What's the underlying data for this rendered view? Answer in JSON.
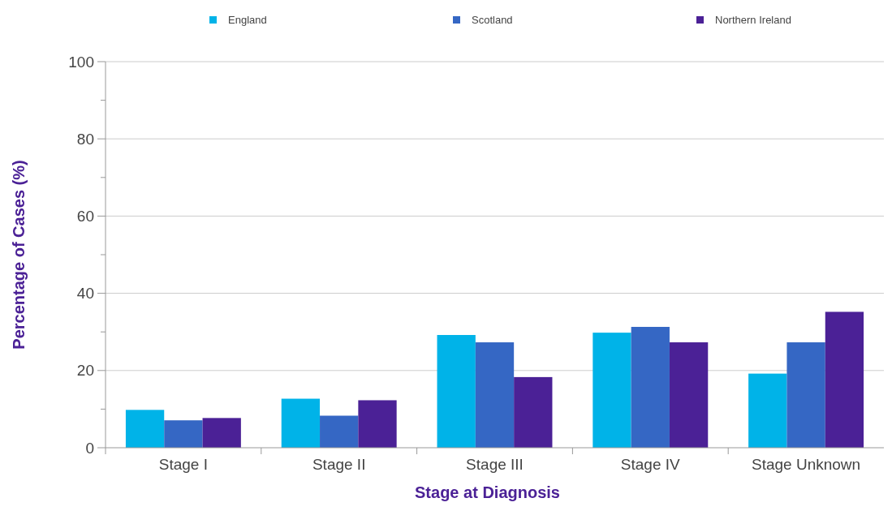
{
  "chart_data": {
    "type": "bar",
    "xlabel": "Stage at Diagnosis",
    "ylabel": "Percentage of Cases (%)",
    "categories": [
      "Stage I",
      "Stage II",
      "Stage III",
      "Stage IV",
      "Stage Unknown"
    ],
    "series": [
      {
        "name": "England",
        "color": "#00b3e8",
        "values": [
          9.8,
          12.7,
          29.2,
          29.8,
          19.2
        ]
      },
      {
        "name": "Scotland",
        "color": "#3567c4",
        "values": [
          7.1,
          8.3,
          27.3,
          31.3,
          27.3
        ]
      },
      {
        "name": "Northern Ireland",
        "color": "#4b2196",
        "values": [
          7.7,
          12.3,
          18.3,
          27.3,
          35.2
        ]
      }
    ],
    "ylim": [
      0,
      100
    ],
    "yticks": [
      0,
      {
        "value": 10,
        "label": null
      },
      20,
      {
        "value": 30,
        "label": null
      },
      40,
      {
        "value": 50,
        "label": null
      },
      60,
      {
        "value": 70,
        "label": null
      },
      80,
      {
        "value": 90,
        "label": null
      },
      100
    ],
    "grid": "y",
    "legend": "top"
  }
}
